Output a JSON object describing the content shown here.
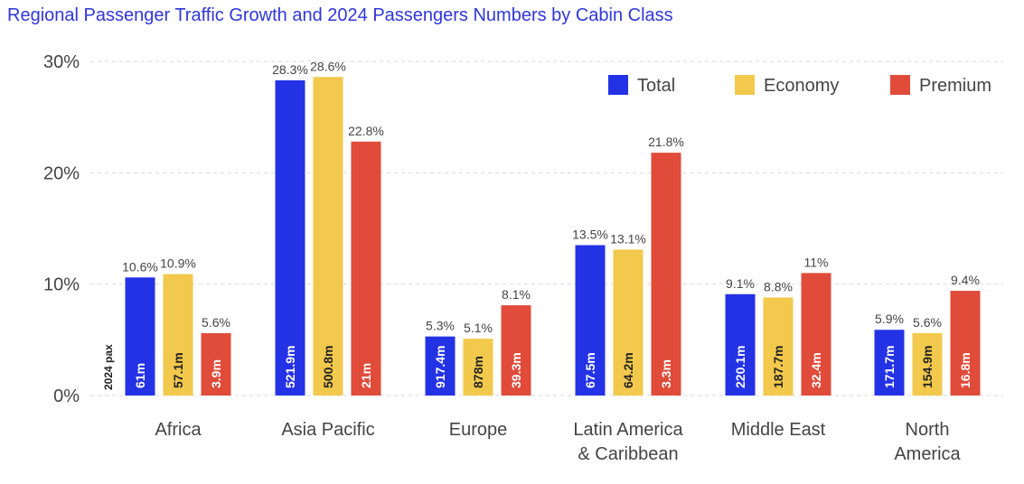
{
  "chart_data": {
    "type": "bar",
    "title": "Regional Passenger Traffic Growth and 2024 Passengers Numbers by Cabin Class",
    "categories": [
      "Africa",
      "Asia Pacific",
      "Europe",
      "Latin America & Caribbean",
      "Middle East",
      "North America"
    ],
    "category_lines": [
      [
        "Africa"
      ],
      [
        "Asia Pacific"
      ],
      [
        "Europe"
      ],
      [
        "Latin America",
        "& Caribbean"
      ],
      [
        "Middle East"
      ],
      [
        "North",
        "America"
      ]
    ],
    "series": [
      {
        "name": "Total",
        "color": "#2432e6",
        "values": [
          10.6,
          28.3,
          5.3,
          13.5,
          9.1,
          5.9
        ],
        "value_labels": [
          "10.6%",
          "28.3%",
          "5.3%",
          "13.5%",
          "9.1%",
          "5.9%"
        ],
        "pax_labels": [
          "61m",
          "521.9m",
          "917.4m",
          "67.5m",
          "220.1m",
          "171.7m"
        ],
        "pax_text_color": "#ffffff"
      },
      {
        "name": "Economy",
        "color": "#f2c94c",
        "values": [
          10.9,
          28.6,
          5.1,
          13.1,
          8.8,
          5.6
        ],
        "value_labels": [
          "10.9%",
          "28.6%",
          "5.1%",
          "13.1%",
          "8.8%",
          "5.6%"
        ],
        "pax_labels": [
          "57.1m",
          "500.8m",
          "878m",
          "64.2m",
          "187.7m",
          "154.9m"
        ],
        "pax_text_color": "#222222"
      },
      {
        "name": "Premium",
        "color": "#e04b3a",
        "values": [
          5.6,
          22.8,
          8.1,
          21.8,
          11,
          9.4
        ],
        "value_labels": [
          "5.6%",
          "22.8%",
          "8.1%",
          "21.8%",
          "11%",
          "9.4%"
        ],
        "pax_labels": [
          "3.9m",
          "21m",
          "39.3m",
          "3.3m",
          "32.4m",
          "16.8m"
        ],
        "pax_text_color": "#ffffff"
      }
    ],
    "ylim": [
      0,
      30
    ],
    "yticks": [
      0,
      10,
      20,
      30
    ],
    "ytick_labels": [
      "0%",
      "10%",
      "20%",
      "30%"
    ],
    "side_label": "2024 pax",
    "grid": true,
    "legend_position": "top-right"
  }
}
